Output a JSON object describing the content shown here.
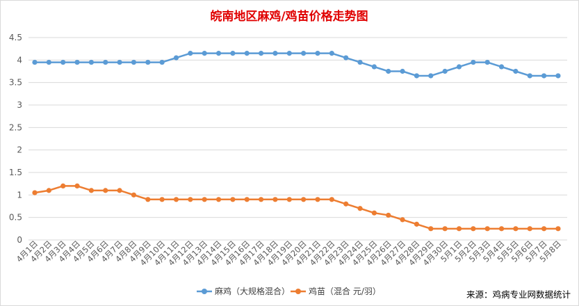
{
  "chart_data": {
    "type": "line",
    "title": "皖南地区麻鸡/鸡苗价格走势图",
    "source": "来源：鸡病专业网数据统计",
    "categories": [
      "4月1日",
      "4月2日",
      "4月3日",
      "4月4日",
      "4月5日",
      "4月6日",
      "4月7日",
      "4月8日",
      "4月9日",
      "4月10日",
      "4月11日",
      "4月12日",
      "4月13日",
      "4月14日",
      "4月15日",
      "4月16日",
      "4月17日",
      "4月18日",
      "4月19日",
      "4月20日",
      "4月21日",
      "4月22日",
      "4月23日",
      "4月24日",
      "4月25日",
      "4月26日",
      "4月27日",
      "4月28日",
      "4月29日",
      "4月30日",
      "5月1日",
      "5月2日",
      "5月3日",
      "5月4日",
      "5月5日",
      "5月6日",
      "5月7日",
      "5月8日"
    ],
    "yticks": [
      "0",
      "0.5",
      "1",
      "1.5",
      "2",
      "2.5",
      "3",
      "3.5",
      "4",
      "4.5"
    ],
    "ylim": [
      0,
      4.5
    ],
    "grid": true,
    "legend_position": "bottom",
    "series": [
      {
        "name": "麻鸡（大规格混合）",
        "color": "#5b9bd5",
        "values": [
          3.95,
          3.95,
          3.95,
          3.95,
          3.95,
          3.95,
          3.95,
          3.95,
          3.95,
          3.95,
          4.05,
          4.15,
          4.15,
          4.15,
          4.15,
          4.15,
          4.15,
          4.15,
          4.15,
          4.15,
          4.15,
          4.15,
          4.05,
          3.95,
          3.85,
          3.75,
          3.75,
          3.65,
          3.65,
          3.75,
          3.85,
          3.95,
          3.95,
          3.85,
          3.75,
          3.65,
          3.65,
          3.65
        ]
      },
      {
        "name": "鸡苗（混合 元/羽）",
        "color": "#ed7d31",
        "values": [
          1.05,
          1.1,
          1.2,
          1.2,
          1.1,
          1.1,
          1.1,
          1.0,
          0.9,
          0.9,
          0.9,
          0.9,
          0.9,
          0.9,
          0.9,
          0.9,
          0.9,
          0.9,
          0.9,
          0.9,
          0.9,
          0.9,
          0.8,
          0.7,
          0.6,
          0.55,
          0.45,
          0.35,
          0.25,
          0.25,
          0.25,
          0.25,
          0.25,
          0.25,
          0.25,
          0.25,
          0.25,
          0.25
        ]
      }
    ]
  }
}
